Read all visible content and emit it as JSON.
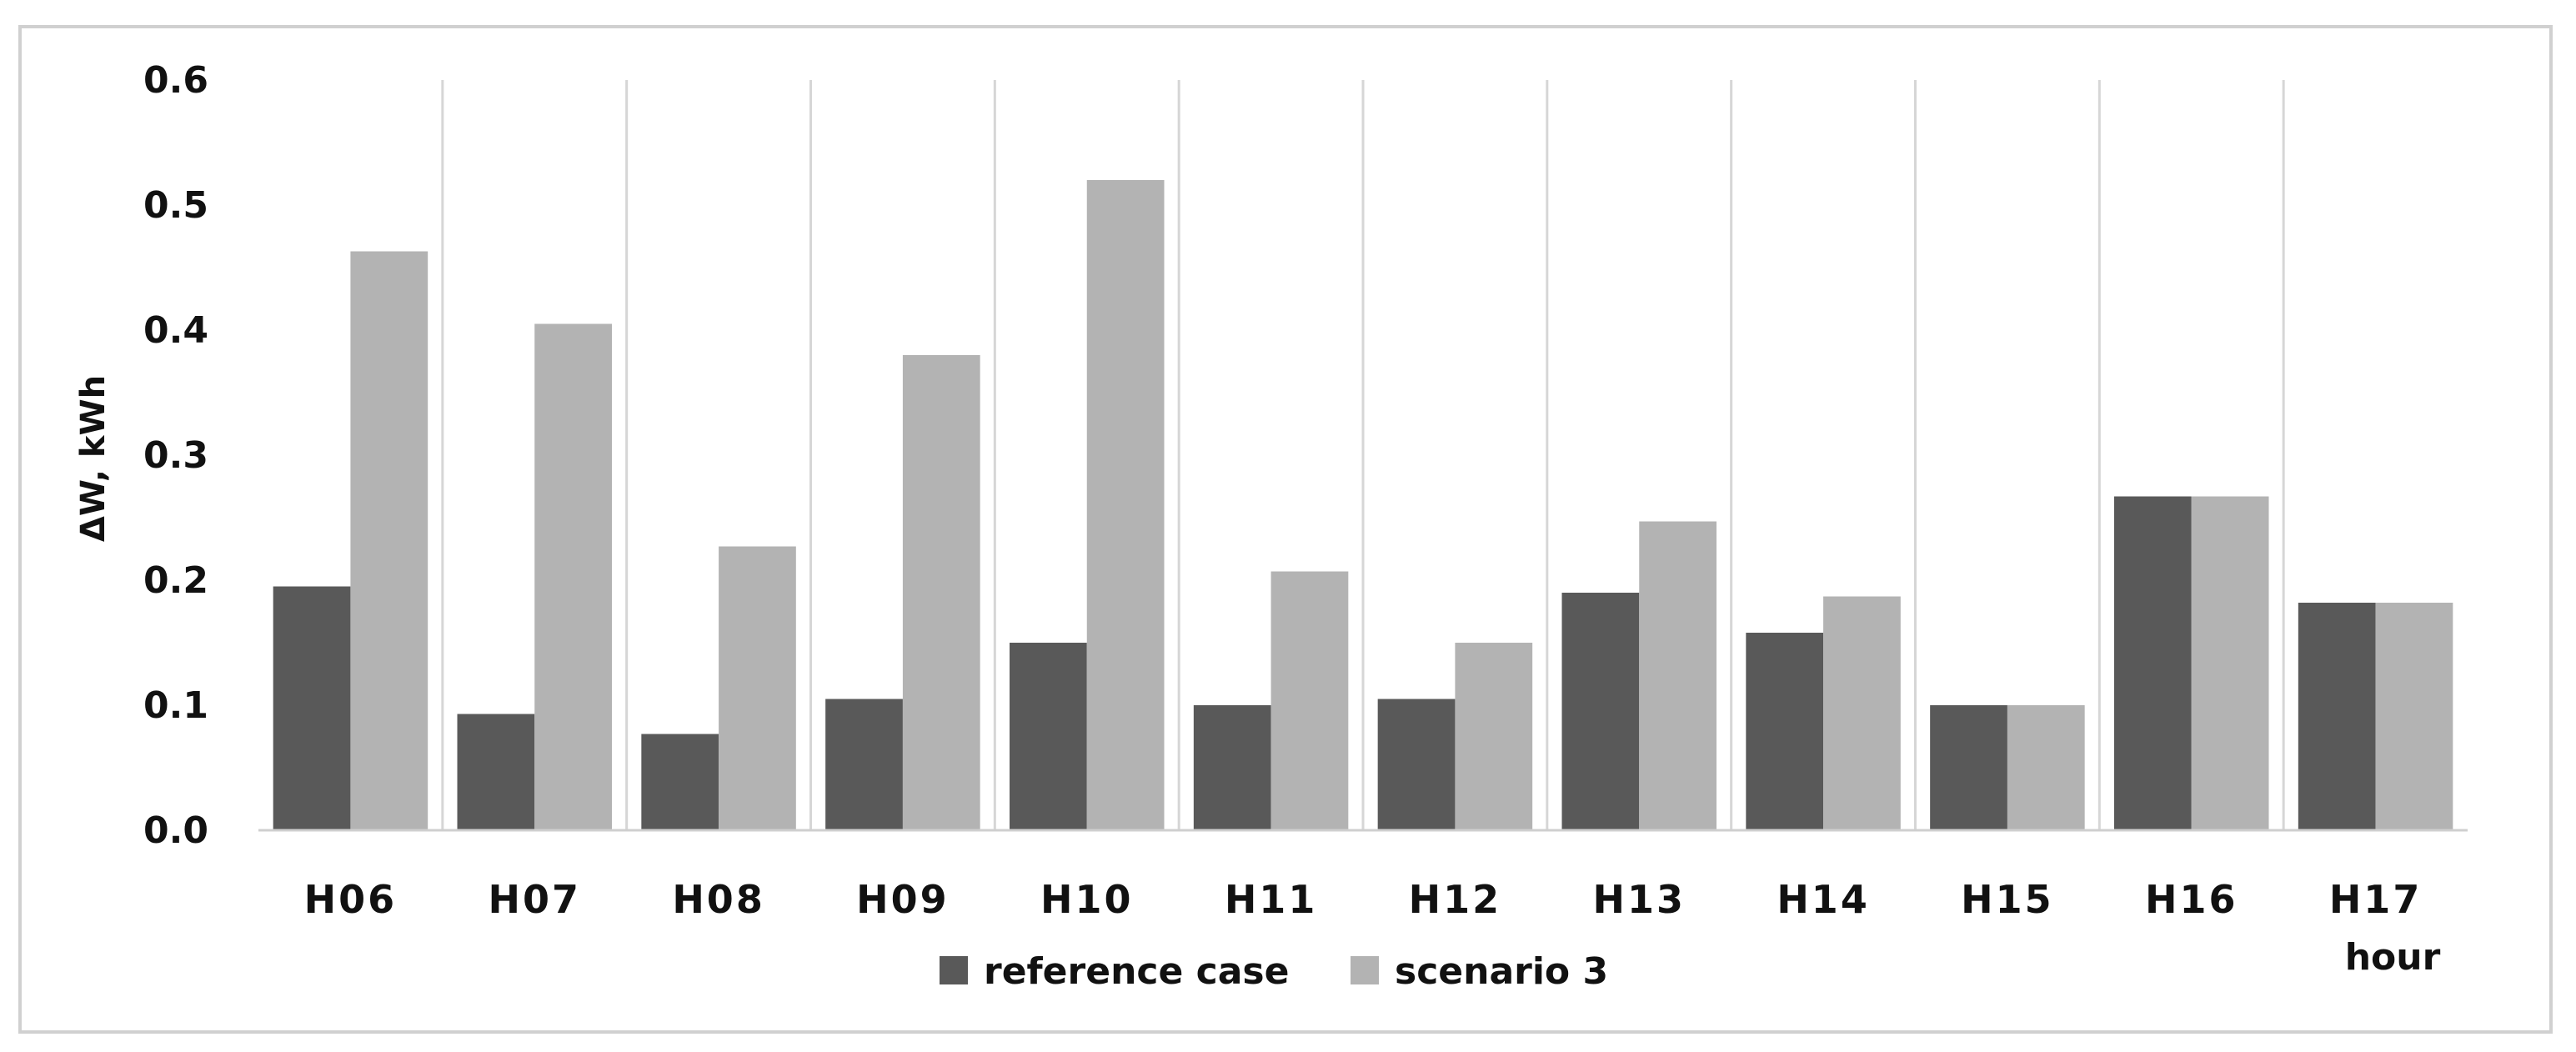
{
  "chart_data": {
    "type": "bar",
    "categories": [
      "H06",
      "H07",
      "H08",
      "H09",
      "H10",
      "H11",
      "H12",
      "H13",
      "H14",
      "H15",
      "H16",
      "H17"
    ],
    "series": [
      {
        "name": "reference case",
        "color": "#595959",
        "values": [
          0.195,
          0.093,
          0.077,
          0.105,
          0.15,
          0.1,
          0.105,
          0.19,
          0.158,
          0.1,
          0.267,
          0.182
        ]
      },
      {
        "name": "scenario 3",
        "color": "#b3b3b3",
        "values": [
          0.463,
          0.405,
          0.227,
          0.38,
          0.52,
          0.207,
          0.15,
          0.247,
          0.187,
          0.1,
          0.267,
          0.182
        ]
      }
    ],
    "ylabel": "ΔW, kWh",
    "xlabel": "hour",
    "ylim": [
      0,
      0.6
    ],
    "yticks": [
      "0.0",
      "0.1",
      "0.2",
      "0.3",
      "0.4",
      "0.5",
      "0.6"
    ],
    "grid": "vertical lines between categories",
    "legend": "bottom-center"
  }
}
